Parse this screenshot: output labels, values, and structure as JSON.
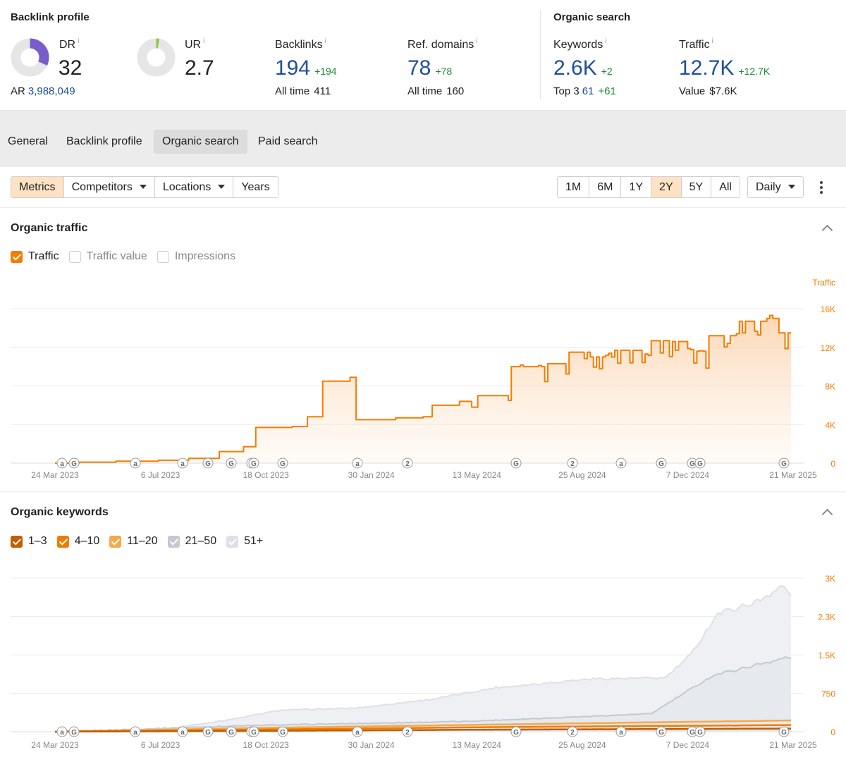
{
  "backlink_profile": {
    "title": "Backlink profile",
    "dr": {
      "label": "DR",
      "info": "i",
      "value": "32",
      "fill_fraction": 0.32,
      "color": "#7a5ccb"
    },
    "ur": {
      "label": "UR",
      "info": "i",
      "value": "2.7",
      "fill_fraction": 0.027,
      "color": "#8dc63f"
    },
    "ar": {
      "label": "AR",
      "value": "3,988,049"
    },
    "backlinks": {
      "label": "Backlinks",
      "info": "i",
      "value": "194",
      "delta": "+194",
      "sub_label": "All time",
      "sub_value": "411"
    },
    "ref_domains": {
      "label": "Ref. domains",
      "info": "i",
      "value": "78",
      "delta": "+78",
      "sub_label": "All time",
      "sub_value": "160"
    }
  },
  "organic_search": {
    "title": "Organic search",
    "keywords": {
      "label": "Keywords",
      "info": "i",
      "value": "2.6K",
      "delta": "+2",
      "sub_label": "Top 3",
      "sub_value": "61",
      "sub_delta": "+61"
    },
    "traffic": {
      "label": "Traffic",
      "info": "i",
      "value": "12.7K",
      "delta": "+12.7K",
      "sub_label": "Value",
      "sub_value": "$7.6K"
    }
  },
  "tabs": [
    {
      "label": "General"
    },
    {
      "label": "Backlink profile"
    },
    {
      "label": "Organic search",
      "active": true
    },
    {
      "label": "Paid search"
    }
  ],
  "toolbar": {
    "metrics": "Metrics",
    "competitors": "Competitors",
    "locations": "Locations",
    "years": "Years",
    "ranges": [
      "1M",
      "6M",
      "1Y",
      "2Y",
      "5Y",
      "All"
    ],
    "active_range": "2Y",
    "interval": "Daily"
  },
  "colors": {
    "accent": "#f57c00",
    "accent_light": "#fde2c4",
    "link_blue": "#1f4f9c",
    "green": "#1e8a3a",
    "pos_1_3": "#c25e00",
    "pos_4_10": "#ef7d00",
    "pos_11_20": "#f7a84a",
    "pos_21_50": "#c4c9d2",
    "pos_51_plus": "#dde0e6"
  },
  "organic_traffic": {
    "title": "Organic traffic",
    "legend": [
      {
        "label": "Traffic",
        "checked": true
      },
      {
        "label": "Traffic value",
        "checked": false
      },
      {
        "label": "Impressions",
        "checked": false
      }
    ]
  },
  "organic_keywords": {
    "title": "Organic keywords",
    "legend": [
      {
        "label": "1–3",
        "checked": true,
        "color": "#c25e00"
      },
      {
        "label": "4–10",
        "checked": true,
        "color": "#ef7d00"
      },
      {
        "label": "11–20",
        "checked": true,
        "color": "#f7a84a"
      },
      {
        "label": "21–50",
        "checked": true,
        "color": "#c4c9d2"
      },
      {
        "label": "51+",
        "checked": true,
        "color": "#dde0e6"
      }
    ]
  },
  "chart_data": [
    {
      "type": "area",
      "series_label": "Traffic",
      "x_ticks": [
        "24 Mar 2023",
        "6 Jul 2023",
        "18 Oct 2023",
        "30 Jan 2024",
        "13 May 2024",
        "25 Aug 2024",
        "7 Dec 2024",
        "21 Mar 2025"
      ],
      "y_ticks": [
        "0",
        "4K",
        "8K",
        "12K",
        "16K"
      ],
      "ylim": [
        0,
        18000
      ],
      "grid": true,
      "series": [
        {
          "name": "Traffic",
          "color": "#f57c00",
          "points": [
            [
              "2023-03-24",
              0
            ],
            [
              "2023-04-15",
              100
            ],
            [
              "2023-05-20",
              200
            ],
            [
              "2023-07-01",
              300
            ],
            [
              "2023-08-01",
              500
            ],
            [
              "2023-09-01",
              1200
            ],
            [
              "2023-09-25",
              1700
            ],
            [
              "2023-10-05",
              3700
            ],
            [
              "2023-11-10",
              3800
            ],
            [
              "2023-11-25",
              4800
            ],
            [
              "2023-12-10",
              8500
            ],
            [
              "2024-01-07",
              8900
            ],
            [
              "2024-01-12",
              4500
            ],
            [
              "2024-02-20",
              4700
            ],
            [
              "2024-03-20",
              4800
            ],
            [
              "2024-03-28",
              6000
            ],
            [
              "2024-04-25",
              6400
            ],
            [
              "2024-05-05",
              5800
            ],
            [
              "2024-05-12",
              7000
            ],
            [
              "2024-06-10",
              6500
            ],
            [
              "2024-06-15",
              10000
            ],
            [
              "2024-07-20",
              10300
            ],
            [
              "2024-08-10",
              11500
            ],
            [
              "2024-09-01",
              11000
            ],
            [
              "2024-09-25",
              11700
            ],
            [
              "2024-10-25",
              12700
            ],
            [
              "2024-11-20",
              12600
            ],
            [
              "2024-12-10",
              11600
            ],
            [
              "2024-12-25",
              13200
            ],
            [
              "2025-01-25",
              14700
            ],
            [
              "2025-02-20",
              15000
            ],
            [
              "2025-03-05",
              13500
            ],
            [
              "2025-03-21",
              12700
            ]
          ]
        }
      ],
      "annotations": [
        "a",
        "G",
        "a",
        "a",
        "G",
        "G",
        "G",
        "G",
        "G",
        "a",
        "2",
        "G",
        "2",
        "a",
        "G",
        "G",
        "G",
        "G"
      ]
    },
    {
      "type": "area",
      "series_label": "Keywords by position",
      "x_ticks": [
        "24 Mar 2023",
        "6 Jul 2023",
        "18 Oct 2023",
        "30 Jan 2024",
        "13 May 2024",
        "25 Aug 2024",
        "7 Dec 2024",
        "21 Mar 2025"
      ],
      "y_ticks": [
        "0",
        "750",
        "1.5K",
        "2.3K",
        "3K"
      ],
      "ylim": [
        0,
        3050
      ],
      "grid": true,
      "series": [
        {
          "name": "1–3",
          "color": "#c25e00",
          "points": [
            [
              "2023-03-24",
              0
            ],
            [
              "2023-10-01",
              15
            ],
            [
              "2024-06-01",
              40
            ],
            [
              "2025-03-21",
              61
            ]
          ]
        },
        {
          "name": "4–10",
          "color": "#ef7d00",
          "points": [
            [
              "2023-03-24",
              0
            ],
            [
              "2023-10-01",
              40
            ],
            [
              "2024-06-01",
              90
            ],
            [
              "2025-03-21",
              130
            ]
          ]
        },
        {
          "name": "11–20",
          "color": "#f7a84a",
          "points": [
            [
              "2023-03-24",
              0
            ],
            [
              "2023-10-01",
              70
            ],
            [
              "2024-06-01",
              140
            ],
            [
              "2025-03-21",
              220
            ]
          ]
        },
        {
          "name": "21–50",
          "color": "#c4c9d2",
          "points": [
            [
              "2023-03-24",
              0
            ],
            [
              "2023-10-01",
              120
            ],
            [
              "2024-05-01",
              200
            ],
            [
              "2024-11-01",
              350
            ],
            [
              "2025-01-01",
              1100
            ],
            [
              "2025-03-15",
              1450
            ],
            [
              "2025-03-21",
              1400
            ]
          ]
        },
        {
          "name": "51+",
          "color": "#dde0e6",
          "points": [
            [
              "2023-03-24",
              0
            ],
            [
              "2023-07-15",
              60
            ],
            [
              "2023-09-20",
              260
            ],
            [
              "2023-11-01",
              420
            ],
            [
              "2024-01-15",
              460
            ],
            [
              "2024-04-01",
              640
            ],
            [
              "2024-06-01",
              860
            ],
            [
              "2024-09-01",
              1030
            ],
            [
              "2024-11-15",
              1050
            ],
            [
              "2024-12-10",
              1500
            ],
            [
              "2025-01-05",
              2300
            ],
            [
              "2025-02-15",
              2550
            ],
            [
              "2025-03-10",
              2850
            ],
            [
              "2025-03-21",
              2600
            ]
          ]
        }
      ],
      "annotations": [
        "a",
        "G",
        "a",
        "a",
        "G",
        "G",
        "G",
        "G",
        "G",
        "a",
        "2",
        "G",
        "2",
        "a",
        "G",
        "G",
        "G",
        "G"
      ]
    }
  ]
}
